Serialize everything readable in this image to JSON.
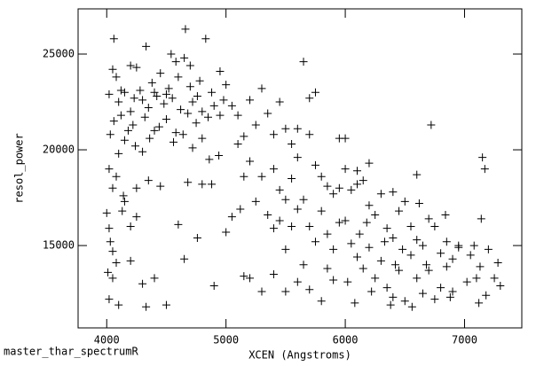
{
  "chart_data": {
    "type": "scatter",
    "title": "master_thar_spectrumR",
    "x_label": "XCEN (Angstroms)",
    "y_label": "resol_power",
    "color": "#000000",
    "xlim": [
      3760,
      7480
    ],
    "ylim": [
      10700,
      27360
    ],
    "xticks": [
      4000,
      5000,
      6000,
      7000
    ],
    "yticks": [
      15000,
      20000,
      25000
    ],
    "x": [
      4050,
      4080,
      4100,
      4120,
      4150,
      4030,
      4060,
      4100,
      4150,
      4200,
      4220,
      4250,
      4280,
      4300,
      4320,
      4350,
      4380,
      4400,
      4420,
      4450,
      4480,
      4500,
      4520,
      4550,
      4580,
      4600,
      4620,
      4650,
      4680,
      4700,
      4720,
      4750,
      4780,
      4800,
      4830,
      4850,
      4880,
      4900,
      4950,
      4980,
      4060,
      4330,
      4660,
      4540,
      4200,
      4120,
      4180,
      4240,
      4300,
      4360,
      4440,
      4560,
      4640,
      4720,
      4800,
      4860,
      4940,
      4020,
      4050,
      4140,
      4150,
      4350,
      4450,
      4680,
      4800,
      4880,
      4020,
      4230,
      4400,
      4500,
      4760,
      5000,
      4580,
      4700,
      4950,
      4000,
      4020,
      4030,
      4050,
      4080,
      4010,
      4050,
      4020,
      4100,
      4130,
      4200,
      4250,
      4300,
      4330,
      4400,
      4500,
      4600,
      4650,
      4760,
      4900,
      4250,
      4200,
      4080,
      5050,
      5100,
      5150,
      5200,
      5250,
      5300,
      5350,
      5400,
      5450,
      5500,
      5550,
      5600,
      5650,
      5700,
      5750,
      5800,
      5850,
      5900,
      5950,
      5200,
      5300,
      5400,
      5450,
      5500,
      5550,
      5600,
      5650,
      5700,
      5750,
      5800,
      5850,
      5900,
      5950,
      5100,
      5150,
      5250,
      5350,
      5400,
      5450,
      5500,
      5550,
      5050,
      5120,
      5000,
      5200,
      5300,
      5400,
      5500,
      5600,
      5700,
      5800,
      5900,
      5150,
      5700,
      5600,
      5750,
      5850,
      5650,
      5950,
      6000,
      6050,
      6100,
      6150,
      6200,
      6250,
      6300,
      6350,
      6400,
      6450,
      6500,
      6550,
      6600,
      6650,
      6700,
      6720,
      6750,
      6800,
      6850,
      6900,
      6950,
      6000,
      6050,
      6100,
      6150,
      6200,
      6250,
      6300,
      6350,
      6400,
      6450,
      6500,
      6550,
      6600,
      6650,
      6700,
      6750,
      6800,
      6850,
      6900,
      6950,
      6020,
      6080,
      6120,
      6180,
      6220,
      6330,
      6380,
      6420,
      6480,
      6560,
      6620,
      6680,
      6840,
      6880,
      6000,
      6100,
      6200,
      6400,
      6600,
      7050,
      7100,
      7120,
      7150,
      7170,
      7140,
      7200,
      7250,
      7300,
      7280,
      7080,
      7180,
      7130,
      7020
    ],
    "values": [
      24200,
      23800,
      22500,
      21800,
      20500,
      20800,
      21500,
      19800,
      23000,
      22000,
      21300,
      24300,
      23100,
      22600,
      21700,
      22200,
      23500,
      21000,
      22800,
      24000,
      22400,
      21600,
      23200,
      22700,
      20900,
      23800,
      22100,
      24800,
      21900,
      23300,
      22500,
      21400,
      23600,
      22000,
      25800,
      21700,
      23000,
      22300,
      21800,
      22600,
      25800,
      25400,
      26300,
      25000,
      24400,
      23100,
      21000,
      20200,
      19900,
      20600,
      21200,
      20400,
      20800,
      20100,
      20600,
      19500,
      19700,
      19000,
      18000,
      17600,
      17300,
      18400,
      18100,
      18300,
      18200,
      18200,
      22900,
      22700,
      23000,
      22900,
      22800,
      23400,
      24600,
      24400,
      24100,
      16700,
      15900,
      15200,
      14700,
      14100,
      13600,
      13300,
      12200,
      11900,
      16800,
      14200,
      16500,
      13000,
      11800,
      13300,
      11900,
      16100,
      14300,
      15400,
      12900,
      18000,
      16000,
      18600,
      22300,
      21800,
      20700,
      22600,
      21300,
      23200,
      21900,
      20800,
      22500,
      21100,
      20300,
      19600,
      24600,
      20800,
      19200,
      18600,
      18100,
      17700,
      20600,
      19400,
      18600,
      19000,
      17900,
      17400,
      18500,
      16900,
      17400,
      16000,
      15200,
      16800,
      15600,
      14800,
      16200,
      20300,
      18600,
      17300,
      16600,
      15900,
      16300,
      14800,
      16000,
      16500,
      16900,
      15700,
      13300,
      12600,
      13500,
      12600,
      13100,
      12700,
      12100,
      13200,
      13400,
      22700,
      21100,
      23000,
      13800,
      14000,
      18000,
      19000,
      17900,
      18900,
      18400,
      17100,
      16600,
      17700,
      15900,
      15400,
      16800,
      17300,
      16000,
      15300,
      15000,
      16400,
      21300,
      16000,
      14600,
      15200,
      14300,
      15000,
      16300,
      15100,
      14400,
      13800,
      14900,
      13300,
      14200,
      12800,
      12300,
      13700,
      12100,
      14500,
      13300,
      12500,
      13700,
      12200,
      12800,
      13900,
      12600,
      14900,
      13100,
      12000,
      15600,
      16200,
      12600,
      15200,
      11900,
      14000,
      14800,
      11800,
      17200,
      14000,
      16600,
      12300,
      20600,
      18200,
      19300,
      17800,
      18700,
      14500,
      13300,
      12000,
      19600,
      19000,
      16400,
      14800,
      13300,
      12900,
      14100,
      15000,
      12400,
      13900,
      13100
    ]
  }
}
